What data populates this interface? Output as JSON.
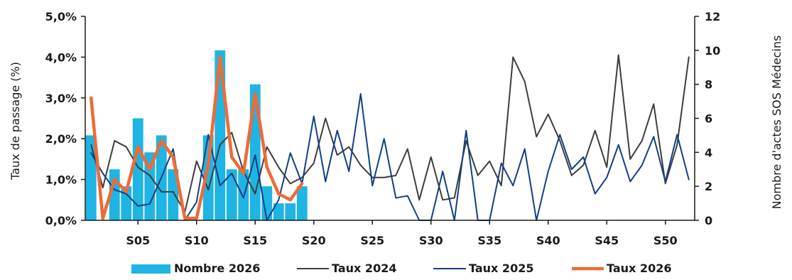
{
  "chart_data": {
    "type": "bar+line",
    "title": "",
    "ylabel_left": "Taux de passage (%)",
    "ylabel_right": "Nombre d'actes SOS Médecins",
    "ylim_left": [
      0,
      5
    ],
    "ylim_right": [
      0,
      12
    ],
    "left_ticks": [
      0,
      1,
      2,
      3,
      4,
      5
    ],
    "left_tick_labels": [
      "0,0%",
      "1,0%",
      "2,0%",
      "3,0%",
      "4,0%",
      "5,0%"
    ],
    "right_ticks": [
      0,
      2,
      4,
      6,
      8,
      10,
      12
    ],
    "right_tick_labels": [
      "0",
      "2",
      "4",
      "6",
      "8",
      "10",
      "12"
    ],
    "x_week_count": 52,
    "x_tick_weeks": [
      5,
      10,
      15,
      20,
      25,
      30,
      35,
      40,
      45,
      50
    ],
    "x_tick_labels": [
      "S05",
      "S10",
      "S15",
      "S20",
      "S25",
      "S30",
      "S35",
      "S40",
      "S45",
      "S50"
    ],
    "bars": {
      "name": "Nombre 2026",
      "axis": "right",
      "color": "#1fb4e3",
      "weeks": [
        1,
        2,
        3,
        4,
        5,
        6,
        7,
        8,
        9,
        10,
        11,
        12,
        13,
        14,
        15,
        16,
        17,
        18,
        19
      ],
      "values": [
        5,
        0,
        3,
        2,
        6,
        4,
        5,
        3,
        0,
        0,
        5,
        10,
        3,
        3,
        8,
        2,
        1,
        1,
        2
      ]
    },
    "series": [
      {
        "name": "Taux 2024",
        "axis": "left",
        "color": "#3d3d3d",
        "width": 2,
        "weeks": [
          1,
          2,
          3,
          4,
          5,
          6,
          7,
          8,
          9,
          10,
          11,
          12,
          13,
          14,
          15,
          16,
          17,
          18,
          19,
          20,
          21,
          22,
          23,
          24,
          25,
          26,
          27,
          28,
          29,
          30,
          31,
          32,
          33,
          34,
          35,
          36,
          37,
          38,
          39,
          40,
          41,
          42,
          43,
          44,
          45,
          46,
          47,
          48,
          49,
          50,
          51,
          52
        ],
        "values": [
          1.85,
          0.8,
          1.95,
          1.8,
          1.3,
          1.1,
          0.7,
          0.7,
          0.2,
          1.45,
          0.75,
          1.85,
          2.15,
          1.2,
          0.65,
          1.8,
          1.3,
          0.9,
          1.05,
          1.4,
          2.5,
          1.6,
          1.8,
          1.35,
          1.05,
          1.05,
          1.1,
          1.75,
          0.5,
          1.55,
          0.5,
          0.55,
          1.95,
          1.1,
          1.45,
          0.85,
          4.0,
          3.4,
          2.05,
          2.6,
          1.95,
          1.1,
          1.35,
          2.2,
          1.3,
          4.05,
          1.5,
          1.95,
          2.85,
          0.9,
          1.85,
          4.0
        ]
      },
      {
        "name": "Taux 2025",
        "axis": "left",
        "color": "#123f85",
        "width": 2,
        "weeks": [
          1,
          2,
          3,
          4,
          5,
          6,
          7,
          8,
          9,
          10,
          11,
          12,
          13,
          14,
          15,
          16,
          17,
          18,
          19,
          20,
          21,
          22,
          23,
          24,
          25,
          26,
          27,
          28,
          29,
          30,
          31,
          32,
          33,
          34,
          35,
          36,
          37,
          38,
          39,
          40,
          41,
          42,
          43,
          44,
          45,
          46,
          47,
          48,
          49,
          50,
          51,
          52
        ],
        "values": [
          1.65,
          1.15,
          0.75,
          0.65,
          0.35,
          0.4,
          1.05,
          1.75,
          0.0,
          0.45,
          2.1,
          0.85,
          1.15,
          0.55,
          1.6,
          0.0,
          0.5,
          1.65,
          0.9,
          2.55,
          0.95,
          2.2,
          1.2,
          3.1,
          0.85,
          2.0,
          0.55,
          0.6,
          0.0,
          0.0,
          1.2,
          0.0,
          2.2,
          0.0,
          0.0,
          1.4,
          0.85,
          1.75,
          0.0,
          1.2,
          2.1,
          1.25,
          1.55,
          0.65,
          1.05,
          1.85,
          0.95,
          1.35,
          2.05,
          0.95,
          2.1,
          1.0
        ]
      },
      {
        "name": "Taux 2026",
        "axis": "left",
        "color": "#ed6b35",
        "width": 4.5,
        "weeks": [
          1,
          2,
          3,
          4,
          5,
          6,
          7,
          8,
          9,
          10,
          11,
          12,
          13,
          14,
          15,
          16,
          17,
          18,
          19
        ],
        "values": [
          3.0,
          0.05,
          1.0,
          0.7,
          1.8,
          1.25,
          1.95,
          1.55,
          0.05,
          0.05,
          1.35,
          4.0,
          1.55,
          1.15,
          3.1,
          1.3,
          0.65,
          0.5,
          0.9
        ]
      }
    ],
    "legend": {
      "position": "bottom",
      "entries": [
        "Nombre 2026",
        "Taux 2024",
        "Taux 2025",
        "Taux 2026"
      ]
    }
  }
}
